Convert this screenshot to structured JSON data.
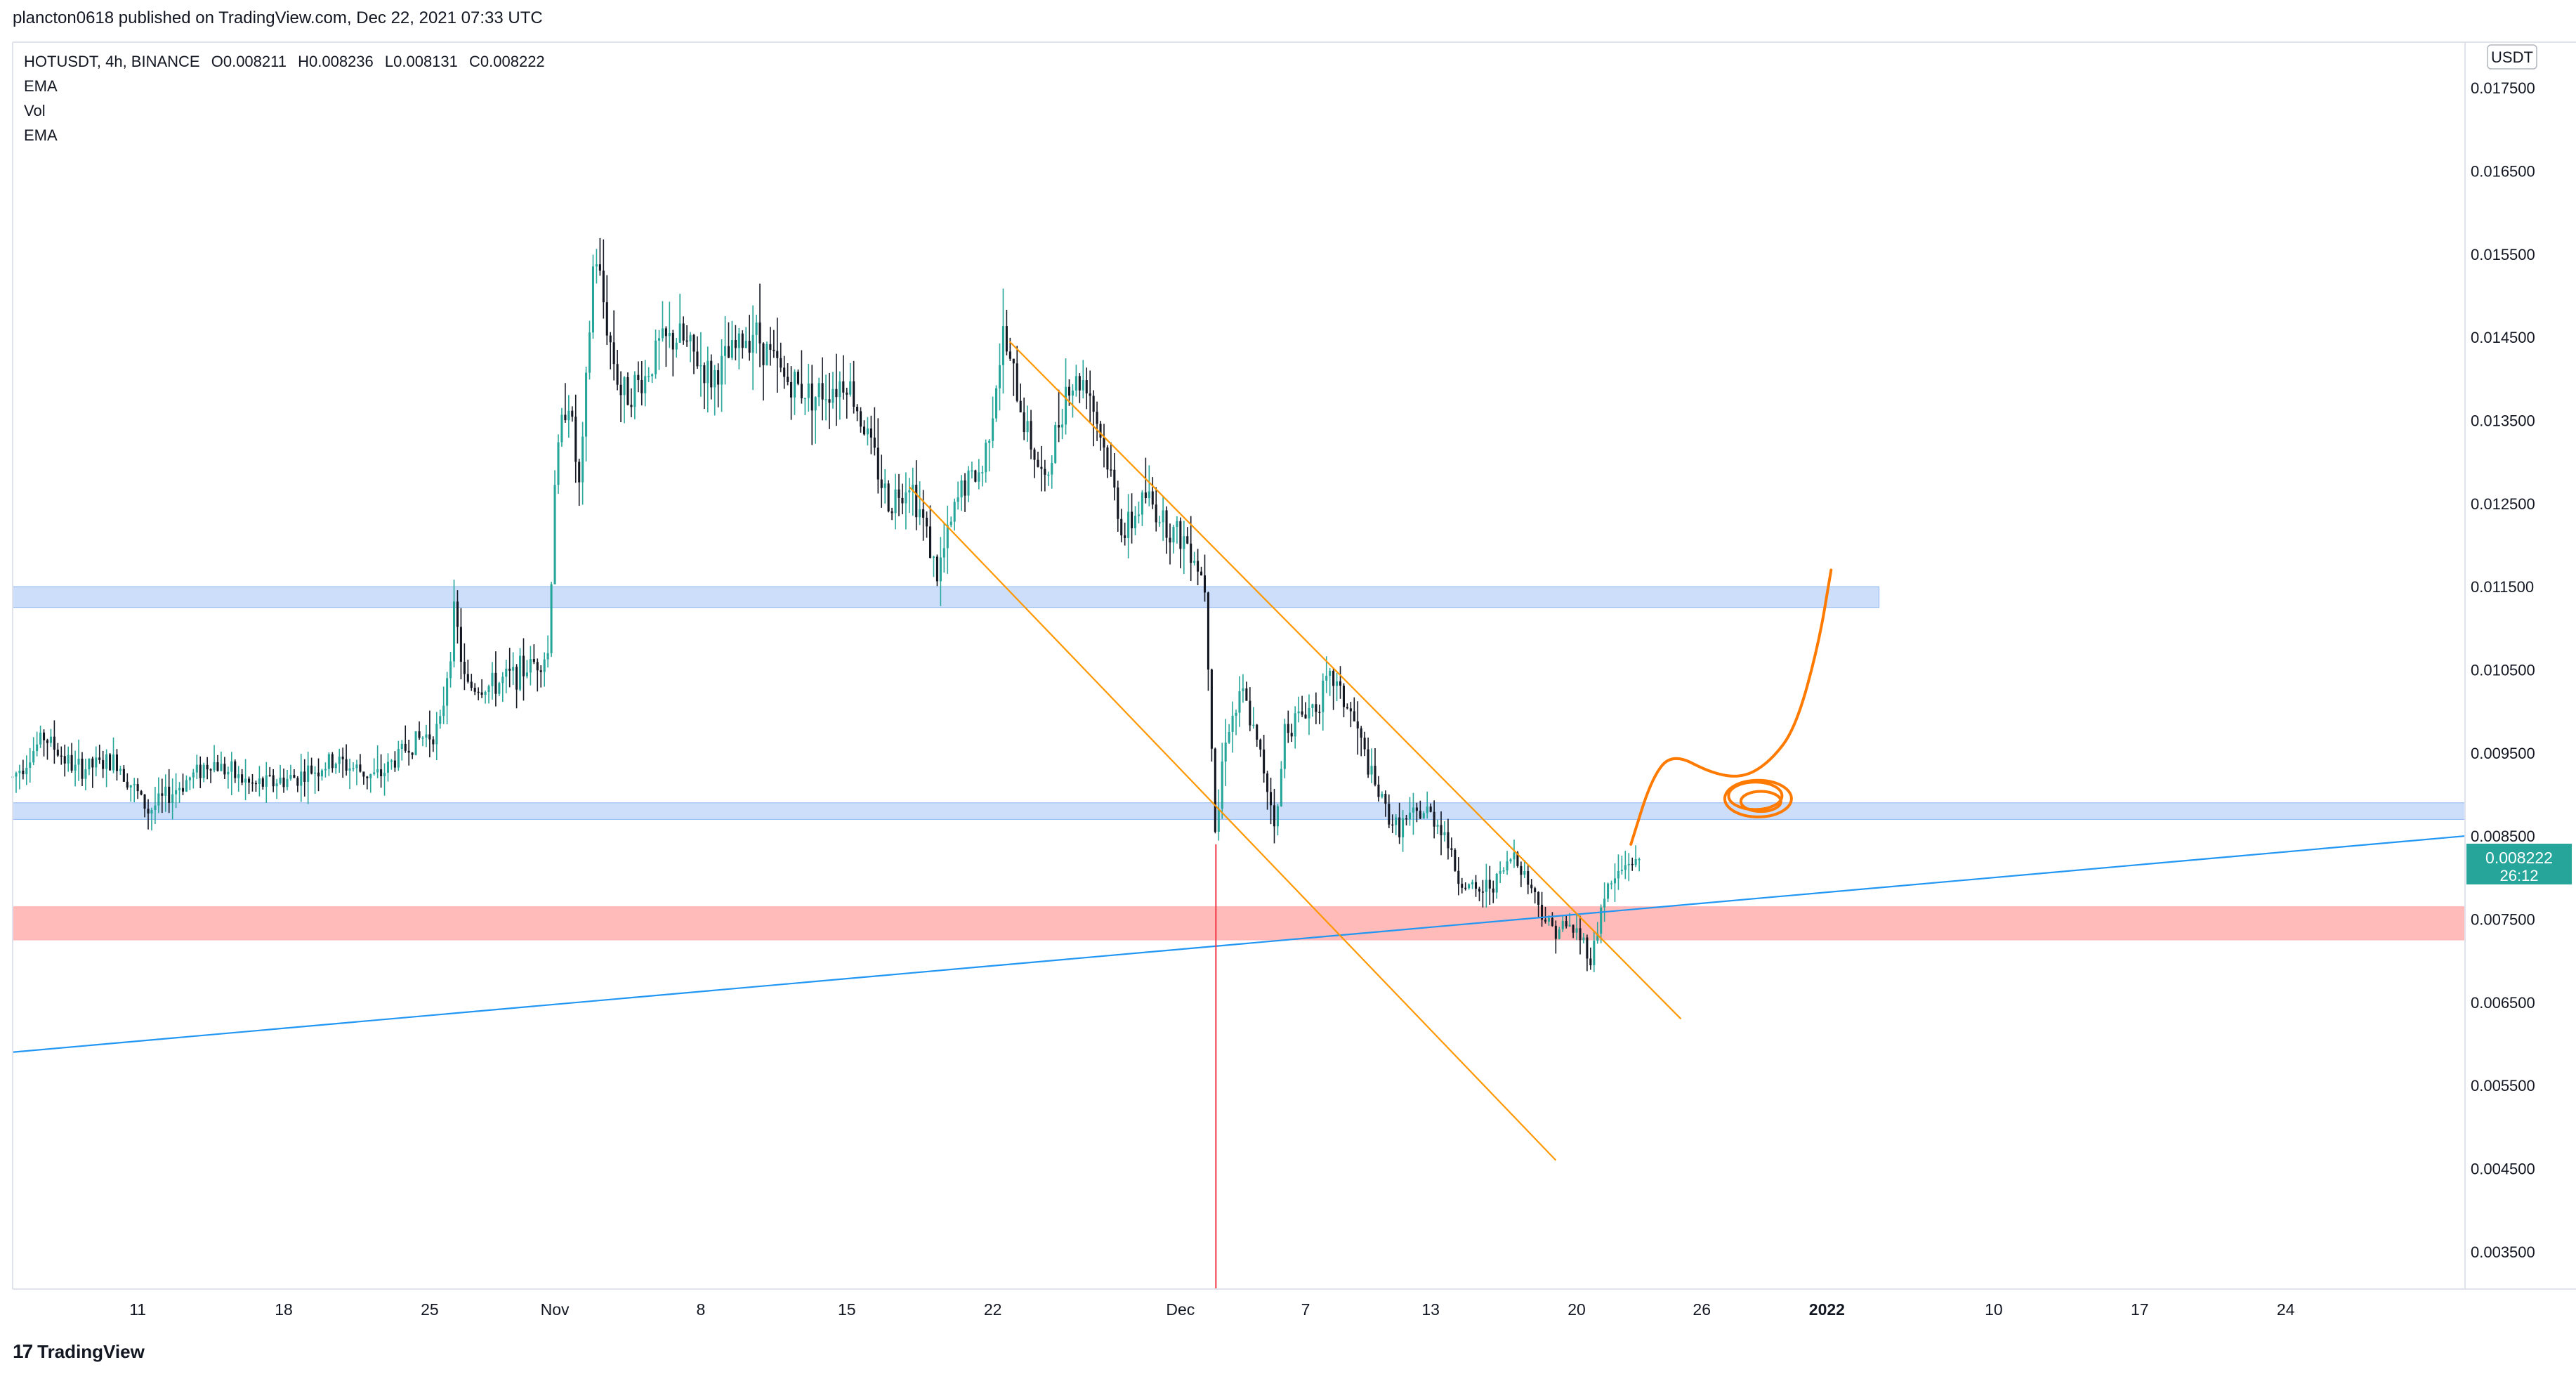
{
  "header": {
    "published": "plancton0618 published on TradingView.com, Dec 22, 2021 07:33 UTC"
  },
  "legend": {
    "symbol": "HOTUSDT, 4h, BINANCE",
    "open": "O0.008211",
    "high": "H0.008236",
    "low": "L0.008131",
    "close": "C0.008222",
    "indicators": [
      "EMA",
      "Vol",
      "EMA"
    ]
  },
  "footer": {
    "brand": "TradingView",
    "logo_glyph": "17"
  },
  "colors": {
    "bull": "#26a69a",
    "bear": "#131722",
    "channel": "#ff9800",
    "trendline": "#2196f3",
    "blue_zone": "#bbd3f7",
    "red_zone": "#ffb3b3",
    "vline": "#f23645",
    "drawing": "#ff7a00",
    "price_tag": "#26a69a"
  },
  "chart_data": {
    "type": "candlestick",
    "title": "HOTUSDT, 4h, BINANCE",
    "y_axis": {
      "unit": "USDT",
      "ylim": [
        0.00305,
        0.01805
      ],
      "ticks": [
        "0.017500",
        "0.016500",
        "0.015500",
        "0.014500",
        "0.013500",
        "0.012500",
        "0.011500",
        "0.010500",
        "0.009500",
        "0.008500",
        "0.007500",
        "0.006500",
        "0.005500",
        "0.004500",
        "0.003500"
      ]
    },
    "x_axis": {
      "ticks": [
        {
          "label": "11",
          "day": 11
        },
        {
          "label": "18",
          "day": 18
        },
        {
          "label": "25",
          "day": 25
        },
        {
          "label": "Nov",
          "day": 31
        },
        {
          "label": "8",
          "day": 38
        },
        {
          "label": "15",
          "day": 45
        },
        {
          "label": "22",
          "day": 52
        },
        {
          "label": "Dec",
          "day": 61
        },
        {
          "label": "7",
          "day": 67
        },
        {
          "label": "13",
          "day": 73
        },
        {
          "label": "20",
          "day": 80
        },
        {
          "label": "26",
          "day": 86
        },
        {
          "label": "2022",
          "day": 92
        },
        {
          "label": "10",
          "day": 100
        },
        {
          "label": "17",
          "day": 107
        },
        {
          "label": "24",
          "day": 114
        }
      ],
      "range_days": [
        5,
        122.6
      ],
      "note": "day index = days since Oct 1, 2021"
    },
    "last_price": {
      "label": "0.008222",
      "countdown": "26:12",
      "value": 0.008222
    },
    "price_path": [
      [
        5.0,
        0.0092
      ],
      [
        6.5,
        0.0097
      ],
      [
        8.0,
        0.0093
      ],
      [
        10.0,
        0.0094
      ],
      [
        11.5,
        0.0088
      ],
      [
        12.5,
        0.009
      ],
      [
        14.5,
        0.0094
      ],
      [
        16.5,
        0.0091
      ],
      [
        18.5,
        0.0092
      ],
      [
        20.5,
        0.0094
      ],
      [
        22.5,
        0.0092
      ],
      [
        24.0,
        0.0096
      ],
      [
        25.5,
        0.0098
      ],
      [
        26.2,
        0.0112
      ],
      [
        26.7,
        0.0103
      ],
      [
        28.0,
        0.0103
      ],
      [
        29.5,
        0.0105
      ],
      [
        30.7,
        0.0107
      ],
      [
        31.0,
        0.0128
      ],
      [
        31.6,
        0.0139
      ],
      [
        32.2,
        0.0126
      ],
      [
        32.9,
        0.0156
      ],
      [
        33.6,
        0.0145
      ],
      [
        34.2,
        0.0138
      ],
      [
        35.3,
        0.014
      ],
      [
        36.0,
        0.0144
      ],
      [
        37.0,
        0.0145
      ],
      [
        38.5,
        0.014
      ],
      [
        40.5,
        0.0146
      ],
      [
        42.0,
        0.014
      ],
      [
        43.5,
        0.0138
      ],
      [
        45.0,
        0.014
      ],
      [
        46.0,
        0.0133
      ],
      [
        47.0,
        0.0125
      ],
      [
        48.0,
        0.0128
      ],
      [
        48.9,
        0.0121
      ],
      [
        49.3,
        0.0116
      ],
      [
        50.5,
        0.0127
      ],
      [
        51.5,
        0.0129
      ],
      [
        52.5,
        0.0145
      ],
      [
        53.5,
        0.0135
      ],
      [
        54.5,
        0.0127
      ],
      [
        55.5,
        0.0139
      ],
      [
        56.5,
        0.014
      ],
      [
        57.5,
        0.013
      ],
      [
        58.3,
        0.0121
      ],
      [
        59.3,
        0.0126
      ],
      [
        60.5,
        0.0122
      ],
      [
        61.5,
        0.012
      ],
      [
        62.2,
        0.0115
      ],
      [
        62.7,
        0.0084
      ],
      [
        63.1,
        0.0097
      ],
      [
        64.0,
        0.0102
      ],
      [
        65.0,
        0.0093
      ],
      [
        65.6,
        0.0086
      ],
      [
        66.0,
        0.0098
      ],
      [
        67.5,
        0.0101
      ],
      [
        68.3,
        0.0104
      ],
      [
        69.3,
        0.0099
      ],
      [
        70.3,
        0.0091
      ],
      [
        71.3,
        0.0086
      ],
      [
        72.8,
        0.0088
      ],
      [
        73.6,
        0.0086
      ],
      [
        74.3,
        0.008
      ],
      [
        75.2,
        0.0078
      ],
      [
        76.3,
        0.008
      ],
      [
        77.0,
        0.0083
      ],
      [
        77.8,
        0.0079
      ],
      [
        78.7,
        0.0074
      ],
      [
        79.8,
        0.0074
      ],
      [
        80.4,
        0.0072
      ],
      [
        80.7,
        0.007
      ],
      [
        81.3,
        0.0078
      ],
      [
        82.5,
        0.0082
      ],
      [
        83.0,
        0.00822
      ]
    ],
    "horizontal_zones": [
      {
        "name": "upper-resistance-zone",
        "from": 0.01125,
        "to": 0.0115,
        "x_from_day": 5,
        "x_to_day": 94.5,
        "color": "blue"
      },
      {
        "name": "mid-support-zone",
        "from": 0.0087,
        "to": 0.0089,
        "x_from_day": 5,
        "x_to_day": 122.6,
        "color": "blue"
      },
      {
        "name": "red-support-zone",
        "from": 0.00725,
        "to": 0.00765,
        "x_from_day": 5,
        "x_to_day": 122.6,
        "color": "red"
      }
    ],
    "trendlines": [
      {
        "name": "rising-trendline",
        "from": [
          5,
          0.0059
        ],
        "to": [
          122.6,
          0.0085
        ],
        "color": "blue"
      },
      {
        "name": "channel-upper-line",
        "from": [
          52.8,
          0.01445
        ],
        "to": [
          85.0,
          0.0063
        ],
        "color": "orange"
      },
      {
        "name": "channel-lower-line",
        "from": [
          48.0,
          0.0127
        ],
        "to": [
          79.0,
          0.0046
        ],
        "color": "orange"
      }
    ],
    "vertical_marker": {
      "day": 62.7,
      "from": 0.0084,
      "to": 0.00305,
      "color": "red"
    },
    "projection_path": [
      [
        82.6,
        0.0084
      ],
      [
        83.6,
        0.0092
      ],
      [
        84.6,
        0.0095
      ],
      [
        86.5,
        0.00925
      ],
      [
        88.0,
        0.0092
      ],
      [
        89.3,
        0.0094
      ],
      [
        90.5,
        0.0098
      ],
      [
        91.6,
        0.0108
      ],
      [
        92.2,
        0.0117
      ]
    ],
    "projection_loop": {
      "center": [
        88.7,
        0.00895
      ],
      "rx_days": 1.6,
      "ry_value": 0.00022
    }
  }
}
